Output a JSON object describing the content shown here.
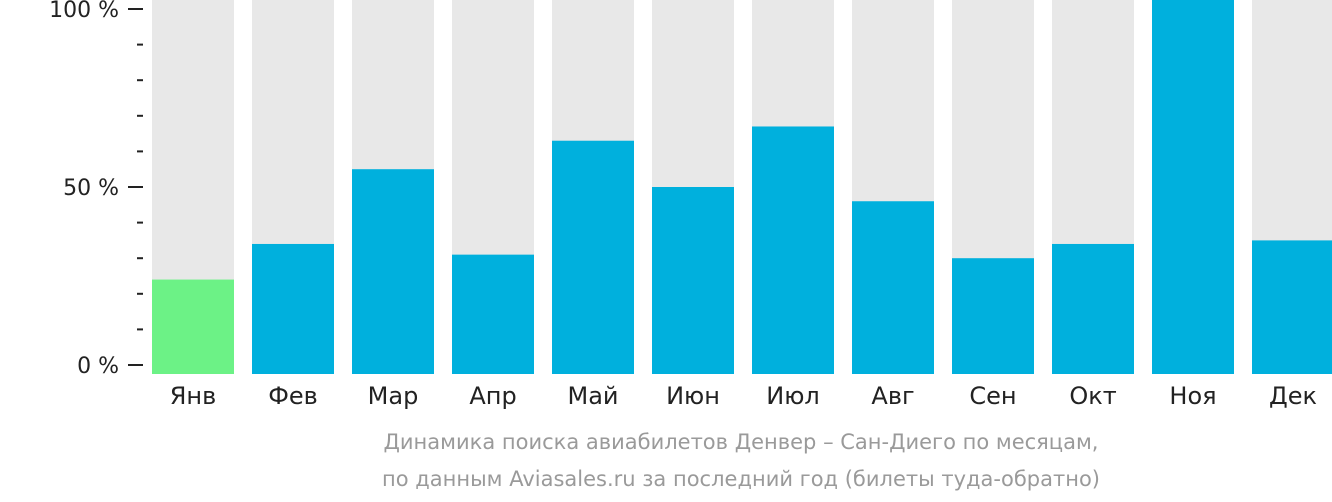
{
  "chart_data": {
    "type": "bar",
    "categories": [
      "Янв",
      "Фев",
      "Мар",
      "Апр",
      "Май",
      "Июн",
      "Июл",
      "Авг",
      "Сен",
      "Окт",
      "Ноя",
      "Дек"
    ],
    "values": [
      24,
      34,
      55,
      31,
      63,
      50,
      67,
      46,
      30,
      34,
      100,
      35
    ],
    "unit": "%",
    "ylim": [
      0,
      100
    ],
    "y_ticks": [
      "0 %",
      "50 %",
      "100 %"
    ],
    "y_tick_values": [
      0,
      50,
      100
    ],
    "highlighted_category": "Янв",
    "colors": {
      "bar": "#00B0DD",
      "bar_highlight": "#6CF286",
      "bar_background": "#E8E8E8",
      "axis": "#222222"
    }
  },
  "caption": {
    "line1": "Динамика поиска авиабилетов Денвер – Сан-Диего по месяцам,",
    "line2": "по данным Aviasales.ru за последний год (билеты туда-обратно)"
  }
}
